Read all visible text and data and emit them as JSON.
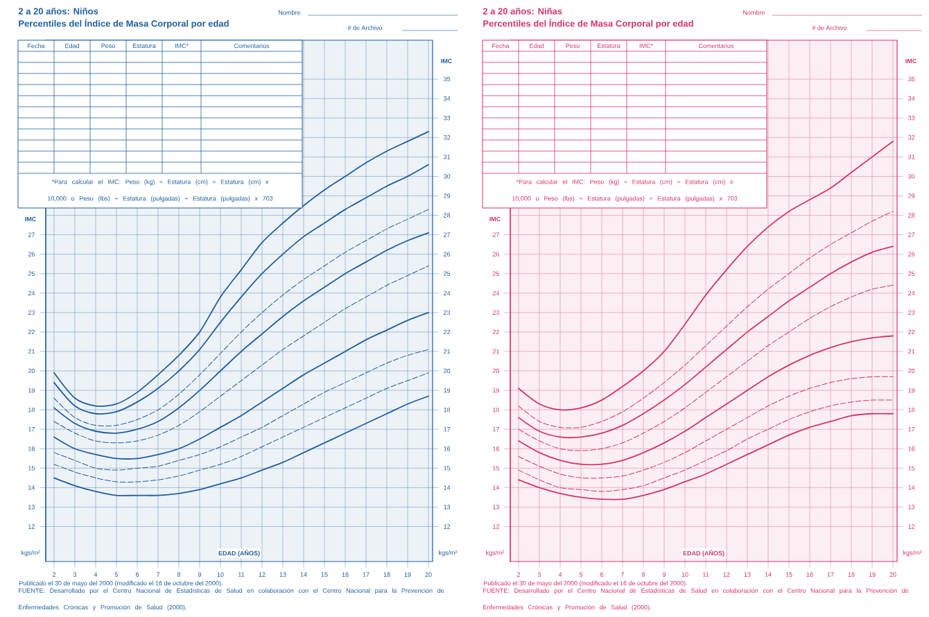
{
  "chart_data": [
    {
      "type": "line",
      "title": "2 a 20 años: Niños",
      "subtitle": "Percentiles del Índice de Masa Corporal por edad",
      "xlabel": "EDAD (AÑOS)",
      "ylabel": "IMC",
      "y2label": "IMC",
      "annotations": [
        "Nombre",
        "# de Archivo",
        "Fecha",
        "Edad",
        "Peso",
        "Estatura",
        "IMC*",
        "Comentarios",
        "*Para calcular el IMC: Peso (kg) ÷ Estatura (cm) ÷ Estatura (cm) x 10,000 o Peso (lbs) ÷ Estatura (pulgadas) ÷ Estatura (pulgadas) x 703",
        "kgs/m²",
        "kgs/m²",
        "Publicado el 30 de mayo del 2000 (modificado el 16 de octubre del 2000).",
        "FUENTE: Desarrollado por el Centro Nacional de Estadísticas de Salud en colaboración con el Centro Nacional para la Prevención de Enfermedades Crónicas y Promoción de Salud (2000)."
      ],
      "x": [
        2,
        3,
        4,
        5,
        6,
        7,
        8,
        9,
        10,
        11,
        12,
        13,
        14,
        15,
        16,
        17,
        18,
        19,
        20
      ],
      "xlim": [
        1.6,
        20.2
      ],
      "xticks": [
        2,
        3,
        4,
        5,
        6,
        7,
        8,
        9,
        10,
        11,
        12,
        13,
        14,
        15,
        16,
        17,
        18,
        19,
        20
      ],
      "ylim": [
        10.2,
        37
      ],
      "yticks": [
        12,
        13,
        14,
        15,
        16,
        17,
        18,
        19,
        20,
        21,
        22,
        23,
        24,
        25,
        26,
        27,
        28,
        29,
        30,
        31,
        32,
        33,
        34,
        35
      ],
      "y2lim": [
        10.2,
        37
      ],
      "y2ticks": [
        12,
        13,
        14,
        15,
        16,
        17,
        18,
        19,
        20,
        21,
        22,
        23,
        24,
        25,
        26,
        27
      ],
      "grid": true,
      "marker": "none",
      "series": [
        {
          "color": "#1f5f9f",
          "line_style": "solid",
          "values": [
            19.9,
            18.6,
            18.2,
            18.3,
            18.9,
            19.8,
            20.8,
            22.0,
            23.8,
            25.2,
            26.6,
            27.6,
            28.5,
            29.3,
            30.0,
            30.7,
            31.3,
            31.8,
            32.3
          ]
        },
        {
          "color": "#1f5f9f",
          "line_style": "solid",
          "values": [
            19.4,
            18.2,
            17.8,
            17.9,
            18.4,
            19.1,
            20.0,
            21.1,
            22.5,
            23.8,
            25.0,
            26.0,
            26.9,
            27.6,
            28.3,
            28.9,
            29.5,
            30.0,
            30.6
          ]
        },
        {
          "color": "#1f5f9f",
          "line_style": "dashed",
          "values": [
            18.6,
            17.6,
            17.2,
            17.2,
            17.5,
            18.0,
            18.8,
            19.8,
            20.9,
            22.0,
            23.0,
            23.9,
            24.7,
            25.4,
            26.1,
            26.7,
            27.3,
            27.8,
            28.3
          ]
        },
        {
          "color": "#1f5f9f",
          "line_style": "solid",
          "values": [
            18.1,
            17.3,
            16.9,
            16.8,
            17.0,
            17.4,
            18.1,
            19.0,
            20.0,
            21.0,
            21.9,
            22.8,
            23.6,
            24.3,
            25.0,
            25.6,
            26.2,
            26.7,
            27.1
          ]
        },
        {
          "color": "#1f5f9f",
          "line_style": "dashed",
          "values": [
            17.4,
            16.8,
            16.4,
            16.3,
            16.4,
            16.7,
            17.2,
            17.9,
            18.7,
            19.5,
            20.3,
            21.1,
            21.8,
            22.5,
            23.2,
            23.8,
            24.4,
            24.9,
            25.4
          ]
        },
        {
          "color": "#1f5f9f",
          "line_style": "solid",
          "values": [
            16.6,
            16.0,
            15.7,
            15.5,
            15.5,
            15.7,
            16.0,
            16.5,
            17.1,
            17.7,
            18.4,
            19.1,
            19.8,
            20.4,
            21.0,
            21.6,
            22.1,
            22.6,
            23.0
          ]
        },
        {
          "color": "#1f5f9f",
          "line_style": "dashed",
          "values": [
            15.8,
            15.4,
            15.0,
            14.9,
            15.0,
            15.1,
            15.4,
            15.7,
            16.1,
            16.6,
            17.1,
            17.7,
            18.3,
            18.9,
            19.4,
            19.9,
            20.4,
            20.8,
            21.1
          ]
        },
        {
          "color": "#1f5f9f",
          "line_style": "dashed",
          "values": [
            15.2,
            14.8,
            14.5,
            14.3,
            14.3,
            14.4,
            14.6,
            14.9,
            15.2,
            15.6,
            16.1,
            16.6,
            17.1,
            17.6,
            18.1,
            18.6,
            19.1,
            19.5,
            19.9
          ]
        },
        {
          "color": "#1f5f9f",
          "line_style": "solid",
          "values": [
            14.5,
            14.1,
            13.8,
            13.6,
            13.6,
            13.6,
            13.7,
            13.9,
            14.2,
            14.5,
            14.9,
            15.3,
            15.8,
            16.3,
            16.8,
            17.3,
            17.8,
            18.3,
            18.7
          ]
        }
      ]
    },
    {
      "type": "line",
      "title": "2 a 20 años: Niñas",
      "subtitle": "Percentiles del Índice de Masa Corporal por edad",
      "xlabel": "EDAD (AÑOS)",
      "ylabel": "IMC",
      "y2label": "IMC",
      "annotations": [
        "Nombre",
        "# de Archivo",
        "Fecha",
        "Edad",
        "Peso",
        "Estatura",
        "IMC*",
        "Comentarios",
        "*Para calcular el IMC: Peso (kg) ÷ Estatura (cm) ÷ Estatura (cm) x 10,000 o Peso (lbs) ÷ Estatura (pulgadas) ÷ Estatura (pulgadas) x 703",
        "kgs/m²",
        "kgs/m²",
        "Publicado el 30 de mayo del 2000 (modificado el 16 de octubre del 2000).",
        "FUENTE: Desarrollado por el Centro Nacional de Estadísticas de Salud en colaboración con el Centro Nacional para la Prevención de Enfermedades Crónicas y Promoción de Salud (2000)."
      ],
      "x": [
        2,
        3,
        4,
        5,
        6,
        7,
        8,
        9,
        10,
        11,
        12,
        13,
        14,
        15,
        16,
        17,
        18,
        19,
        20
      ],
      "xlim": [
        1.6,
        20.2
      ],
      "xticks": [
        2,
        3,
        4,
        5,
        6,
        7,
        8,
        9,
        10,
        11,
        12,
        13,
        14,
        15,
        16,
        17,
        18,
        19,
        20
      ],
      "ylim": [
        10.2,
        37
      ],
      "yticks": [
        12,
        13,
        14,
        15,
        16,
        17,
        18,
        19,
        20,
        21,
        22,
        23,
        24,
        25,
        26,
        27,
        28,
        29,
        30,
        31,
        32,
        33,
        34,
        35
      ],
      "y2lim": [
        10.2,
        37
      ],
      "y2ticks": [
        12,
        13,
        14,
        15,
        16,
        17,
        18,
        19,
        20,
        21,
        22,
        23,
        24,
        25,
        26,
        27
      ],
      "grid": true,
      "marker": "none",
      "series": [
        {
          "color": "#d6336c",
          "line_style": "solid",
          "values": [
            19.1,
            18.3,
            18.0,
            18.1,
            18.5,
            19.2,
            20.0,
            21.0,
            22.4,
            23.9,
            25.2,
            26.4,
            27.4,
            28.2,
            28.8,
            29.4,
            30.2,
            31.0,
            31.8
          ]
        },
        {
          "color": "#d6336c",
          "line_style": "dashed",
          "values": [
            18.2,
            17.4,
            17.1,
            17.1,
            17.4,
            17.9,
            18.6,
            19.4,
            20.3,
            21.3,
            22.3,
            23.3,
            24.2,
            25.0,
            25.8,
            26.5,
            27.1,
            27.7,
            28.2
          ]
        },
        {
          "color": "#d6336c",
          "line_style": "solid",
          "values": [
            17.6,
            16.9,
            16.6,
            16.6,
            16.8,
            17.2,
            17.8,
            18.5,
            19.3,
            20.2,
            21.1,
            22.0,
            22.8,
            23.6,
            24.3,
            25.0,
            25.6,
            26.1,
            26.4
          ]
        },
        {
          "color": "#d6336c",
          "line_style": "dashed",
          "values": [
            17.0,
            16.4,
            16.0,
            15.9,
            16.0,
            16.3,
            16.8,
            17.4,
            18.1,
            18.9,
            19.7,
            20.5,
            21.3,
            22.0,
            22.7,
            23.3,
            23.8,
            24.2,
            24.4
          ]
        },
        {
          "color": "#d6336c",
          "line_style": "solid",
          "values": [
            16.4,
            15.8,
            15.4,
            15.2,
            15.2,
            15.4,
            15.8,
            16.3,
            16.9,
            17.6,
            18.3,
            19.0,
            19.7,
            20.3,
            20.8,
            21.2,
            21.5,
            21.7,
            21.8
          ]
        },
        {
          "color": "#d6336c",
          "line_style": "dashed",
          "values": [
            15.6,
            15.1,
            14.7,
            14.5,
            14.5,
            14.6,
            14.9,
            15.3,
            15.8,
            16.4,
            17.0,
            17.6,
            18.2,
            18.7,
            19.1,
            19.4,
            19.6,
            19.7,
            19.7
          ]
        },
        {
          "color": "#d6336c",
          "line_style": "dashed",
          "values": [
            14.9,
            14.4,
            14.0,
            13.9,
            13.8,
            13.9,
            14.1,
            14.5,
            14.9,
            15.4,
            15.9,
            16.5,
            17.0,
            17.5,
            17.9,
            18.2,
            18.4,
            18.5,
            18.5
          ]
        },
        {
          "color": "#d6336c",
          "line_style": "solid",
          "values": [
            14.4,
            14.0,
            13.7,
            13.5,
            13.4,
            13.4,
            13.6,
            13.9,
            14.3,
            14.7,
            15.2,
            15.7,
            16.2,
            16.7,
            17.1,
            17.4,
            17.7,
            17.8,
            17.8
          ]
        }
      ]
    }
  ]
}
